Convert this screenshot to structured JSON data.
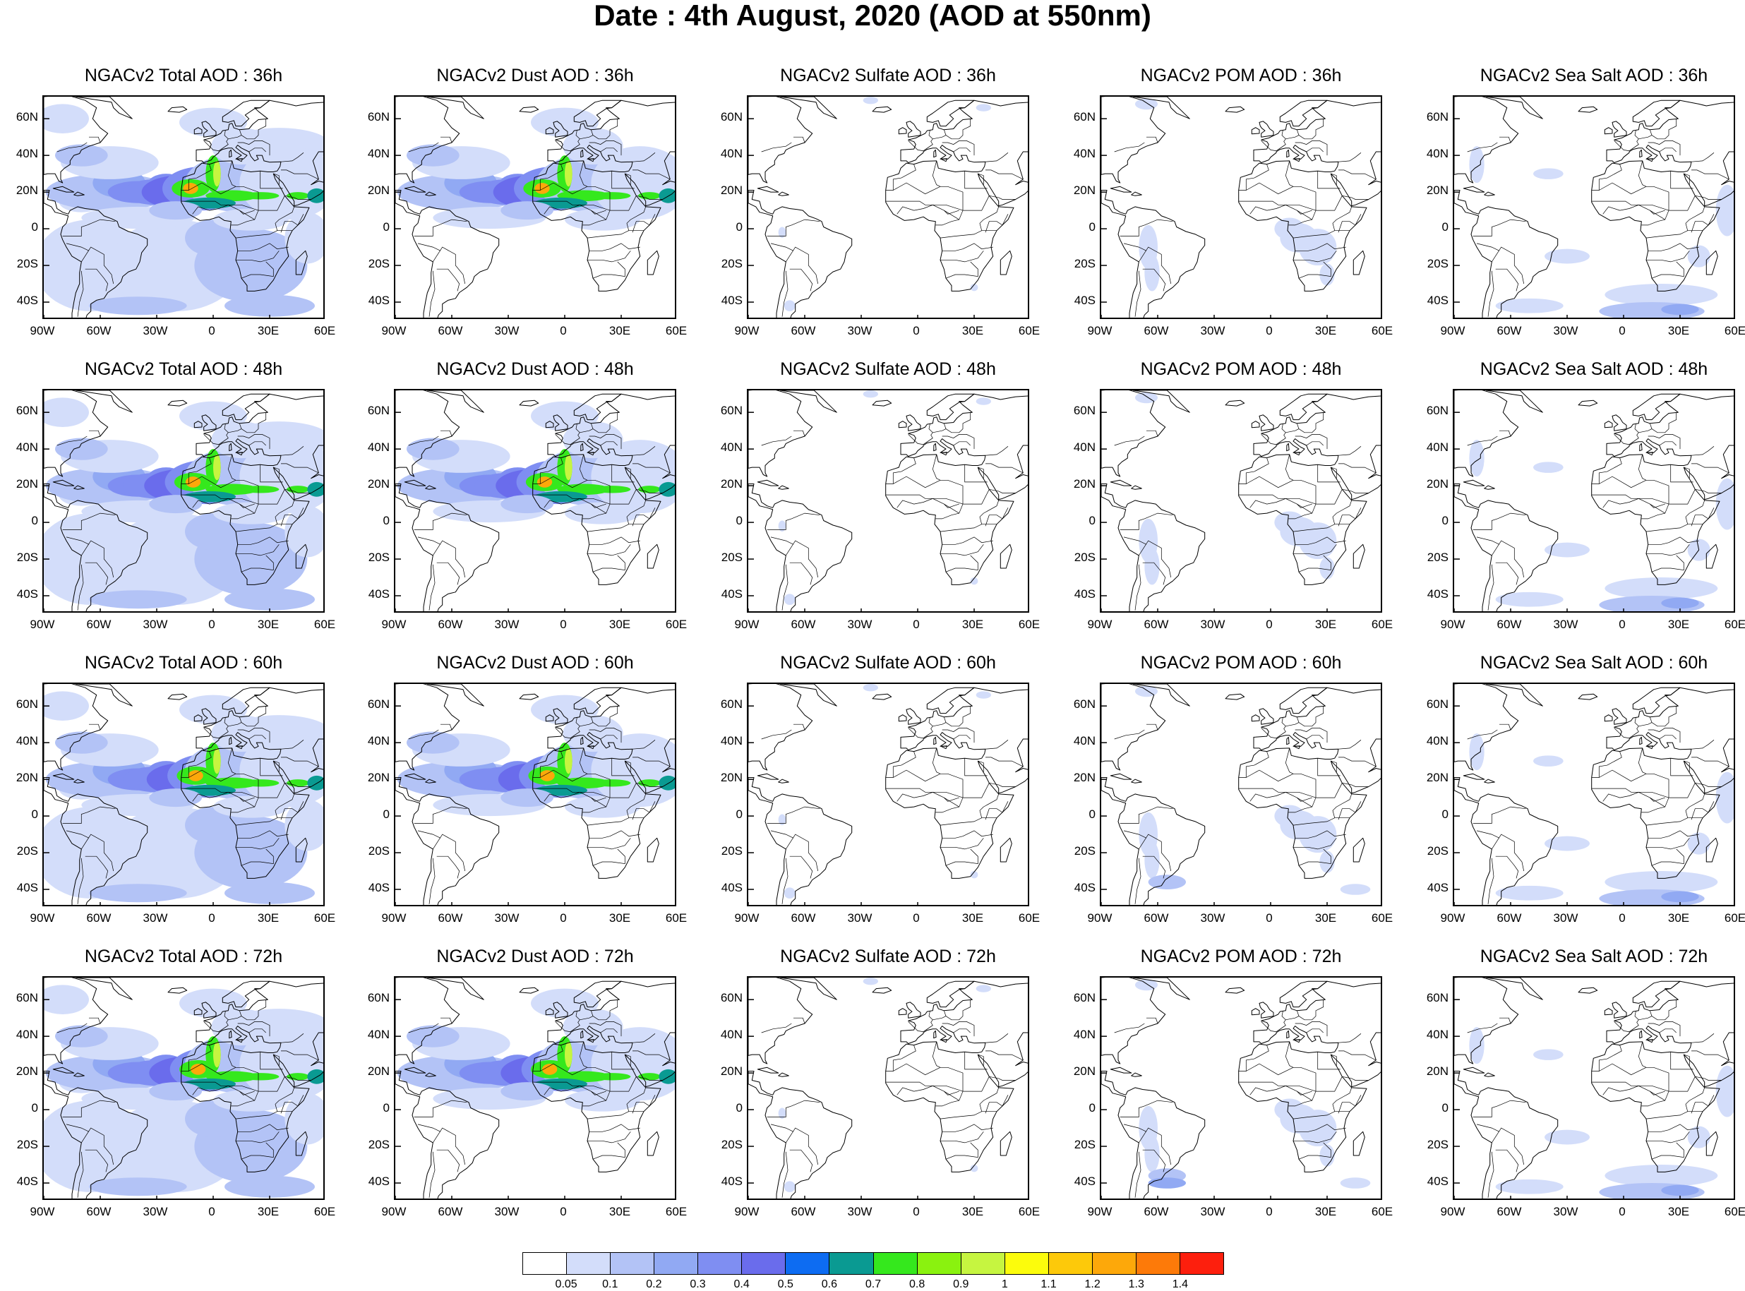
{
  "title": "Date : 4th August, 2020 (AOD at 550nm)",
  "lat_labels": [
    "60N",
    "40N",
    "20N",
    "0",
    "20S",
    "40S"
  ],
  "lon_labels": [
    "90W",
    "60W",
    "30W",
    "0",
    "30E",
    "60E"
  ],
  "panels": [
    {
      "row": 0,
      "col": 0,
      "title": "NGACv2 Total AOD : 36h",
      "species": "total",
      "hour": 36
    },
    {
      "row": 0,
      "col": 1,
      "title": "NGACv2 Dust AOD : 36h",
      "species": "dust",
      "hour": 36
    },
    {
      "row": 0,
      "col": 2,
      "title": "NGACv2 Sulfate AOD : 36h",
      "species": "sulfate",
      "hour": 36
    },
    {
      "row": 0,
      "col": 3,
      "title": "NGACv2 POM AOD : 36h",
      "species": "pom",
      "hour": 36
    },
    {
      "row": 0,
      "col": 4,
      "title": "NGACv2 Sea Salt AOD : 36h",
      "species": "seasalt",
      "hour": 36
    },
    {
      "row": 1,
      "col": 0,
      "title": "NGACv2 Total AOD : 48h",
      "species": "total",
      "hour": 48
    },
    {
      "row": 1,
      "col": 1,
      "title": "NGACv2 Dust AOD : 48h",
      "species": "dust",
      "hour": 48
    },
    {
      "row": 1,
      "col": 2,
      "title": "NGACv2 Sulfate AOD : 48h",
      "species": "sulfate",
      "hour": 48
    },
    {
      "row": 1,
      "col": 3,
      "title": "NGACv2 POM AOD : 48h",
      "species": "pom",
      "hour": 48
    },
    {
      "row": 1,
      "col": 4,
      "title": "NGACv2 Sea Salt AOD : 48h",
      "species": "seasalt",
      "hour": 48
    },
    {
      "row": 2,
      "col": 0,
      "title": "NGACv2 Total AOD : 60h",
      "species": "total",
      "hour": 60
    },
    {
      "row": 2,
      "col": 1,
      "title": "NGACv2 Dust AOD : 60h",
      "species": "dust",
      "hour": 60
    },
    {
      "row": 2,
      "col": 2,
      "title": "NGACv2 Sulfate AOD : 60h",
      "species": "sulfate",
      "hour": 60
    },
    {
      "row": 2,
      "col": 3,
      "title": "NGACv2 POM AOD : 60h",
      "species": "pom",
      "hour": 60
    },
    {
      "row": 2,
      "col": 4,
      "title": "NGACv2 Sea Salt AOD : 60h",
      "species": "seasalt",
      "hour": 60
    },
    {
      "row": 3,
      "col": 0,
      "title": "NGACv2 Total AOD : 72h",
      "species": "total",
      "hour": 72
    },
    {
      "row": 3,
      "col": 1,
      "title": "NGACv2 Dust AOD : 72h",
      "species": "dust",
      "hour": 72
    },
    {
      "row": 3,
      "col": 2,
      "title": "NGACv2 Sulfate AOD : 72h",
      "species": "sulfate",
      "hour": 72
    },
    {
      "row": 3,
      "col": 3,
      "title": "NGACv2 POM AOD : 72h",
      "species": "pom",
      "hour": 72
    },
    {
      "row": 3,
      "col": 4,
      "title": "NGACv2 Sea Salt  AOD : 72h",
      "species": "seasalt",
      "hour": 72
    }
  ],
  "colorbar": {
    "colors": [
      "#ffffff",
      "#d3ddfa",
      "#b3c3f6",
      "#91a9f3",
      "#7f8ef2",
      "#6a6cec",
      "#0d6cf2",
      "#0a9a92",
      "#35e81d",
      "#8af20f",
      "#c6f540",
      "#fcfc0c",
      "#fdc90a",
      "#fda80a",
      "#fd7a09",
      "#fd1f0d"
    ],
    "labels": [
      "0.05",
      "0.1",
      "0.2",
      "0.3",
      "0.4",
      "0.5",
      "0.6",
      "0.7",
      "0.8",
      "0.9",
      "1",
      "1.1",
      "1.2",
      "1.3",
      "1.4"
    ]
  },
  "legend_placement": "bottom"
}
